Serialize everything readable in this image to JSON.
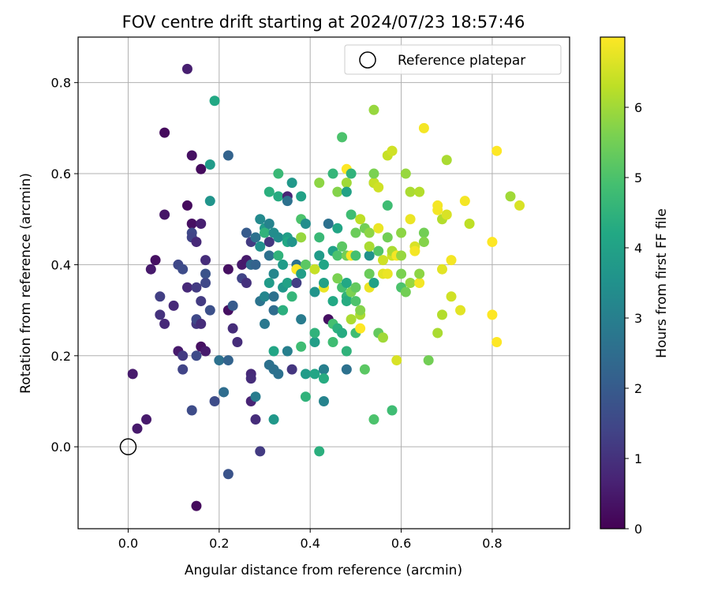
{
  "chart_data": {
    "type": "scatter",
    "title": "FOV centre drift starting at 2024/07/23 18:57:46",
    "xlabel": "Angular distance from reference (arcmin)",
    "ylabel": "Rotation from reference (arcmin)",
    "xlim": [
      -0.11,
      0.97
    ],
    "ylim": [
      -0.18,
      0.9
    ],
    "x_ticks": [
      "0.0",
      "0.2",
      "0.4",
      "0.6",
      "0.8"
    ],
    "y_ticks": [
      "0.0",
      "0.2",
      "0.4",
      "0.6",
      "0.8"
    ],
    "grid": true,
    "legend": {
      "placement": "top-right",
      "entries": [
        "Reference platepar"
      ]
    },
    "reference_point": {
      "x": 0.0,
      "y": 0.0
    },
    "colorbar": {
      "label": "Hours from first FF file",
      "range": [
        0,
        7
      ],
      "ticks": [
        "0",
        "1",
        "2",
        "3",
        "4",
        "5",
        "6"
      ],
      "colormap": "viridis"
    },
    "points": [
      [
        0.01,
        0.16,
        0.5
      ],
      [
        0.02,
        0.04,
        0.5
      ],
      [
        0.04,
        0.06,
        0.5
      ],
      [
        0.05,
        0.39,
        0.5
      ],
      [
        0.06,
        0.41,
        0.3
      ],
      [
        0.07,
        0.33,
        1.3
      ],
      [
        0.07,
        0.29,
        1.0
      ],
      [
        0.08,
        0.27,
        0.8
      ],
      [
        0.08,
        0.51,
        0.4
      ],
      [
        0.08,
        0.69,
        0.2
      ],
      [
        0.1,
        0.31,
        0.8
      ],
      [
        0.11,
        0.21,
        0.5
      ],
      [
        0.11,
        0.4,
        1.5
      ],
      [
        0.12,
        0.17,
        1.4
      ],
      [
        0.12,
        0.2,
        1.2
      ],
      [
        0.12,
        0.39,
        1.6
      ],
      [
        0.13,
        0.35,
        0.8
      ],
      [
        0.13,
        0.83,
        0.6
      ],
      [
        0.13,
        0.53,
        0.2
      ],
      [
        0.14,
        0.49,
        0.3
      ],
      [
        0.14,
        0.64,
        0.3
      ],
      [
        0.14,
        0.47,
        1.5
      ],
      [
        0.14,
        0.46,
        1.4
      ],
      [
        0.14,
        0.08,
        1.6
      ],
      [
        0.15,
        0.27,
        1.1
      ],
      [
        0.15,
        0.28,
        1.5
      ],
      [
        0.15,
        0.2,
        1.6
      ],
      [
        0.15,
        0.45,
        0.8
      ],
      [
        0.15,
        0.35,
        1.2
      ],
      [
        0.15,
        -0.13,
        0.2
      ],
      [
        0.16,
        0.32,
        1.2
      ],
      [
        0.16,
        0.22,
        0.3
      ],
      [
        0.16,
        0.61,
        0.2
      ],
      [
        0.16,
        0.49,
        0.6
      ],
      [
        0.16,
        0.27,
        0.9
      ],
      [
        0.17,
        0.41,
        0.9
      ],
      [
        0.17,
        0.38,
        1.8
      ],
      [
        0.17,
        0.36,
        1.5
      ],
      [
        0.17,
        0.21,
        0.5
      ],
      [
        0.18,
        0.3,
        1.7
      ],
      [
        0.18,
        0.54,
        3.6
      ],
      [
        0.18,
        0.62,
        3.8
      ],
      [
        0.19,
        0.76,
        4.2
      ],
      [
        0.19,
        0.1,
        1.6
      ],
      [
        0.2,
        0.19,
        2.6
      ],
      [
        0.21,
        0.12,
        2.5
      ],
      [
        0.22,
        0.3,
        0.3
      ],
      [
        0.22,
        0.39,
        0.3
      ],
      [
        0.22,
        -0.06,
        1.8
      ],
      [
        0.22,
        0.19,
        2.2
      ],
      [
        0.22,
        0.64,
        2.2
      ],
      [
        0.23,
        0.26,
        0.9
      ],
      [
        0.23,
        0.31,
        2.0
      ],
      [
        0.24,
        0.23,
        0.9
      ],
      [
        0.25,
        0.37,
        1.4
      ],
      [
        0.25,
        0.4,
        0.5
      ],
      [
        0.26,
        0.36,
        1.0
      ],
      [
        0.26,
        0.41,
        0.5
      ],
      [
        0.26,
        0.47,
        2.0
      ],
      [
        0.27,
        0.4,
        2.4
      ],
      [
        0.27,
        0.16,
        0.8
      ],
      [
        0.27,
        0.15,
        0.9
      ],
      [
        0.27,
        0.45,
        1.2
      ],
      [
        0.27,
        0.1,
        0.7
      ],
      [
        0.28,
        0.11,
        2.9
      ],
      [
        0.28,
        0.46,
        2.6
      ],
      [
        0.28,
        0.4,
        2.2
      ],
      [
        0.28,
        0.06,
        0.9
      ],
      [
        0.29,
        -0.01,
        1.2
      ],
      [
        0.29,
        0.32,
        2.7
      ],
      [
        0.29,
        0.5,
        3.3
      ],
      [
        0.29,
        0.44,
        3.5
      ],
      [
        0.3,
        0.27,
        2.8
      ],
      [
        0.3,
        0.33,
        3.2
      ],
      [
        0.3,
        0.48,
        3.8
      ],
      [
        0.3,
        0.47,
        4.5
      ],
      [
        0.31,
        0.36,
        3.8
      ],
      [
        0.31,
        0.56,
        4.4
      ],
      [
        0.31,
        0.45,
        1.1
      ],
      [
        0.31,
        0.42,
        2.6
      ],
      [
        0.31,
        0.49,
        3.1
      ],
      [
        0.31,
        0.18,
        2.6
      ],
      [
        0.32,
        0.3,
        2.5
      ],
      [
        0.32,
        0.33,
        2.6
      ],
      [
        0.32,
        0.38,
        3.2
      ],
      [
        0.32,
        0.06,
        3.7
      ],
      [
        0.32,
        0.17,
        2.6
      ],
      [
        0.32,
        0.21,
        4.1
      ],
      [
        0.32,
        0.47,
        3.4
      ],
      [
        0.33,
        0.42,
        4.5
      ],
      [
        0.33,
        0.16,
        2.6
      ],
      [
        0.33,
        0.46,
        3.4
      ],
      [
        0.33,
        0.6,
        4.7
      ],
      [
        0.33,
        0.55,
        4.3
      ],
      [
        0.34,
        0.4,
        3.8
      ],
      [
        0.34,
        0.35,
        3.7
      ],
      [
        0.34,
        0.3,
        4.4
      ],
      [
        0.35,
        0.36,
        4.0
      ],
      [
        0.35,
        0.46,
        3.9
      ],
      [
        0.35,
        0.45,
        4.2
      ],
      [
        0.35,
        0.55,
        0.7
      ],
      [
        0.35,
        0.54,
        2.6
      ],
      [
        0.35,
        0.21,
        3.0
      ],
      [
        0.36,
        0.17,
        1.1
      ],
      [
        0.36,
        0.58,
        3.7
      ],
      [
        0.36,
        0.33,
        4.6
      ],
      [
        0.36,
        0.45,
        3.6
      ],
      [
        0.37,
        0.4,
        2.6
      ],
      [
        0.37,
        0.39,
        3.8
      ],
      [
        0.37,
        0.36,
        1.3
      ],
      [
        0.37,
        0.39,
        7.0
      ],
      [
        0.38,
        0.22,
        4.8
      ],
      [
        0.38,
        0.28,
        2.9
      ],
      [
        0.38,
        0.38,
        3.9
      ],
      [
        0.38,
        0.55,
        4.0
      ],
      [
        0.38,
        0.46,
        5.9
      ],
      [
        0.38,
        0.5,
        5.0
      ],
      [
        0.39,
        0.11,
        4.5
      ],
      [
        0.39,
        0.16,
        3.8
      ],
      [
        0.39,
        0.4,
        5.2
      ],
      [
        0.39,
        0.49,
        3.4
      ],
      [
        0.41,
        0.39,
        6.4
      ],
      [
        0.41,
        0.23,
        3.9
      ],
      [
        0.41,
        0.34,
        3.6
      ],
      [
        0.41,
        0.16,
        4.1
      ],
      [
        0.41,
        0.25,
        4.5
      ],
      [
        0.42,
        0.42,
        3.8
      ],
      [
        0.42,
        0.46,
        4.7
      ],
      [
        0.42,
        0.58,
        5.8
      ],
      [
        0.42,
        -0.01,
        4.4
      ],
      [
        0.43,
        0.17,
        2.9
      ],
      [
        0.43,
        0.17,
        3.0
      ],
      [
        0.43,
        0.15,
        4.3
      ],
      [
        0.43,
        0.1,
        3.1
      ],
      [
        0.43,
        0.35,
        6.8
      ],
      [
        0.43,
        0.36,
        4.0
      ],
      [
        0.43,
        0.4,
        4.1
      ],
      [
        0.44,
        0.28,
        0.3
      ],
      [
        0.44,
        0.49,
        2.6
      ],
      [
        0.45,
        0.43,
        4.0
      ],
      [
        0.45,
        0.32,
        4.2
      ],
      [
        0.45,
        0.27,
        4.9
      ],
      [
        0.45,
        0.6,
        4.6
      ],
      [
        0.45,
        0.23,
        4.8
      ],
      [
        0.46,
        0.37,
        5.6
      ],
      [
        0.46,
        0.26,
        4.4
      ],
      [
        0.46,
        0.56,
        5.7
      ],
      [
        0.46,
        0.48,
        4.1
      ],
      [
        0.46,
        0.42,
        5.0
      ],
      [
        0.47,
        0.35,
        4.9
      ],
      [
        0.47,
        0.68,
        5.0
      ],
      [
        0.47,
        0.25,
        4.3
      ],
      [
        0.47,
        0.44,
        5.2
      ],
      [
        0.48,
        0.36,
        4.2
      ],
      [
        0.48,
        0.21,
        4.5
      ],
      [
        0.48,
        0.33,
        4.5
      ],
      [
        0.48,
        0.42,
        5.5
      ],
      [
        0.48,
        0.61,
        7.0
      ],
      [
        0.48,
        0.58,
        6.0
      ],
      [
        0.48,
        0.56,
        4.0
      ],
      [
        0.48,
        0.32,
        4.3
      ],
      [
        0.48,
        0.17,
        2.6
      ],
      [
        0.49,
        0.51,
        4.8
      ],
      [
        0.49,
        0.42,
        6.9
      ],
      [
        0.49,
        0.28,
        6.1
      ],
      [
        0.49,
        0.34,
        5.6
      ],
      [
        0.49,
        0.6,
        4.5
      ],
      [
        0.5,
        0.35,
        5.3
      ],
      [
        0.5,
        0.47,
        5.4
      ],
      [
        0.5,
        0.25,
        4.8
      ],
      [
        0.5,
        0.32,
        5.0
      ],
      [
        0.5,
        0.42,
        4.9
      ],
      [
        0.51,
        0.5,
        6.3
      ],
      [
        0.51,
        0.29,
        6.1
      ],
      [
        0.51,
        0.26,
        7.0
      ],
      [
        0.51,
        0.3,
        5.7
      ],
      [
        0.52,
        0.17,
        5.2
      ],
      [
        0.52,
        0.48,
        5.5
      ],
      [
        0.53,
        0.42,
        3.5
      ],
      [
        0.53,
        0.47,
        5.8
      ],
      [
        0.53,
        0.44,
        6.1
      ],
      [
        0.53,
        0.35,
        6.8
      ],
      [
        0.53,
        0.38,
        5.4
      ],
      [
        0.54,
        0.74,
        5.9
      ],
      [
        0.54,
        0.58,
        3.6
      ],
      [
        0.54,
        0.58,
        6.4
      ],
      [
        0.54,
        0.6,
        5.6
      ],
      [
        0.54,
        0.06,
        5.0
      ],
      [
        0.54,
        0.36,
        4.0
      ],
      [
        0.55,
        0.25,
        5.3
      ],
      [
        0.55,
        0.57,
        6.5
      ],
      [
        0.55,
        0.48,
        6.8
      ],
      [
        0.55,
        0.43,
        5.1
      ],
      [
        0.56,
        0.24,
        6.0
      ],
      [
        0.56,
        0.38,
        6.7
      ],
      [
        0.56,
        0.41,
        6.5
      ],
      [
        0.57,
        0.53,
        4.8
      ],
      [
        0.57,
        0.38,
        6.8
      ],
      [
        0.57,
        0.64,
        6.4
      ],
      [
        0.57,
        0.46,
        5.5
      ],
      [
        0.58,
        0.65,
        6.8
      ],
      [
        0.58,
        0.42,
        6.5
      ],
      [
        0.58,
        0.43,
        6.1
      ],
      [
        0.58,
        0.65,
        6.5
      ],
      [
        0.58,
        0.08,
        4.8
      ],
      [
        0.59,
        0.42,
        6.9
      ],
      [
        0.59,
        0.19,
        6.6
      ],
      [
        0.6,
        0.42,
        5.9
      ],
      [
        0.6,
        0.35,
        5.0
      ],
      [
        0.6,
        0.38,
        5.6
      ],
      [
        0.6,
        0.47,
        5.8
      ],
      [
        0.61,
        0.6,
        5.9
      ],
      [
        0.61,
        0.34,
        5.5
      ],
      [
        0.62,
        0.36,
        5.9
      ],
      [
        0.62,
        0.5,
        6.8
      ],
      [
        0.62,
        0.56,
        6.1
      ],
      [
        0.63,
        0.44,
        6.6
      ],
      [
        0.63,
        0.43,
        6.9
      ],
      [
        0.64,
        0.56,
        6.2
      ],
      [
        0.64,
        0.36,
        6.9
      ],
      [
        0.64,
        0.38,
        5.8
      ],
      [
        0.65,
        0.47,
        5.5
      ],
      [
        0.65,
        0.45,
        5.7
      ],
      [
        0.65,
        0.7,
        6.9
      ],
      [
        0.66,
        0.19,
        5.5
      ],
      [
        0.68,
        0.52,
        6.9
      ],
      [
        0.68,
        0.25,
        6.1
      ],
      [
        0.68,
        0.53,
        6.9
      ],
      [
        0.69,
        0.29,
        6.2
      ],
      [
        0.69,
        0.5,
        6.2
      ],
      [
        0.69,
        0.39,
        6.7
      ],
      [
        0.7,
        0.51,
        6.6
      ],
      [
        0.7,
        0.63,
        6.1
      ],
      [
        0.71,
        0.33,
        6.5
      ],
      [
        0.71,
        0.41,
        6.9
      ],
      [
        0.73,
        0.3,
        6.7
      ],
      [
        0.74,
        0.54,
        6.9
      ],
      [
        0.75,
        0.49,
        6.3
      ],
      [
        0.8,
        0.29,
        7.0
      ],
      [
        0.8,
        0.45,
        7.0
      ],
      [
        0.81,
        0.23,
        7.0
      ],
      [
        0.81,
        0.65,
        7.0
      ],
      [
        0.84,
        0.55,
        6.0
      ],
      [
        0.86,
        0.53,
        6.6
      ]
    ]
  }
}
